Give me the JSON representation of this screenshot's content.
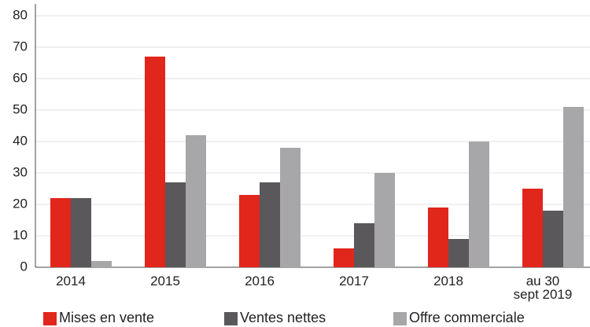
{
  "chart_data": {
    "type": "bar",
    "categories": [
      "2014",
      "2015",
      "2016",
      "2017",
      "2018",
      "au 30\nsept 2019"
    ],
    "series": [
      {
        "name": "Mises en vente",
        "color": "#e1261c",
        "values": [
          22,
          67,
          23,
          6,
          19,
          25
        ]
      },
      {
        "name": "Ventes nettes",
        "color": "#5a585b",
        "values": [
          22,
          27,
          27,
          14,
          9,
          18
        ]
      },
      {
        "name": "Offre commerciale",
        "color": "#a7a7a9",
        "values": [
          2,
          42,
          38,
          30,
          40,
          51
        ]
      }
    ],
    "ylim": [
      0,
      80
    ],
    "yticks": [
      0,
      10,
      20,
      30,
      40,
      50,
      60,
      70,
      80
    ],
    "grid": true,
    "legend": "bottom"
  }
}
